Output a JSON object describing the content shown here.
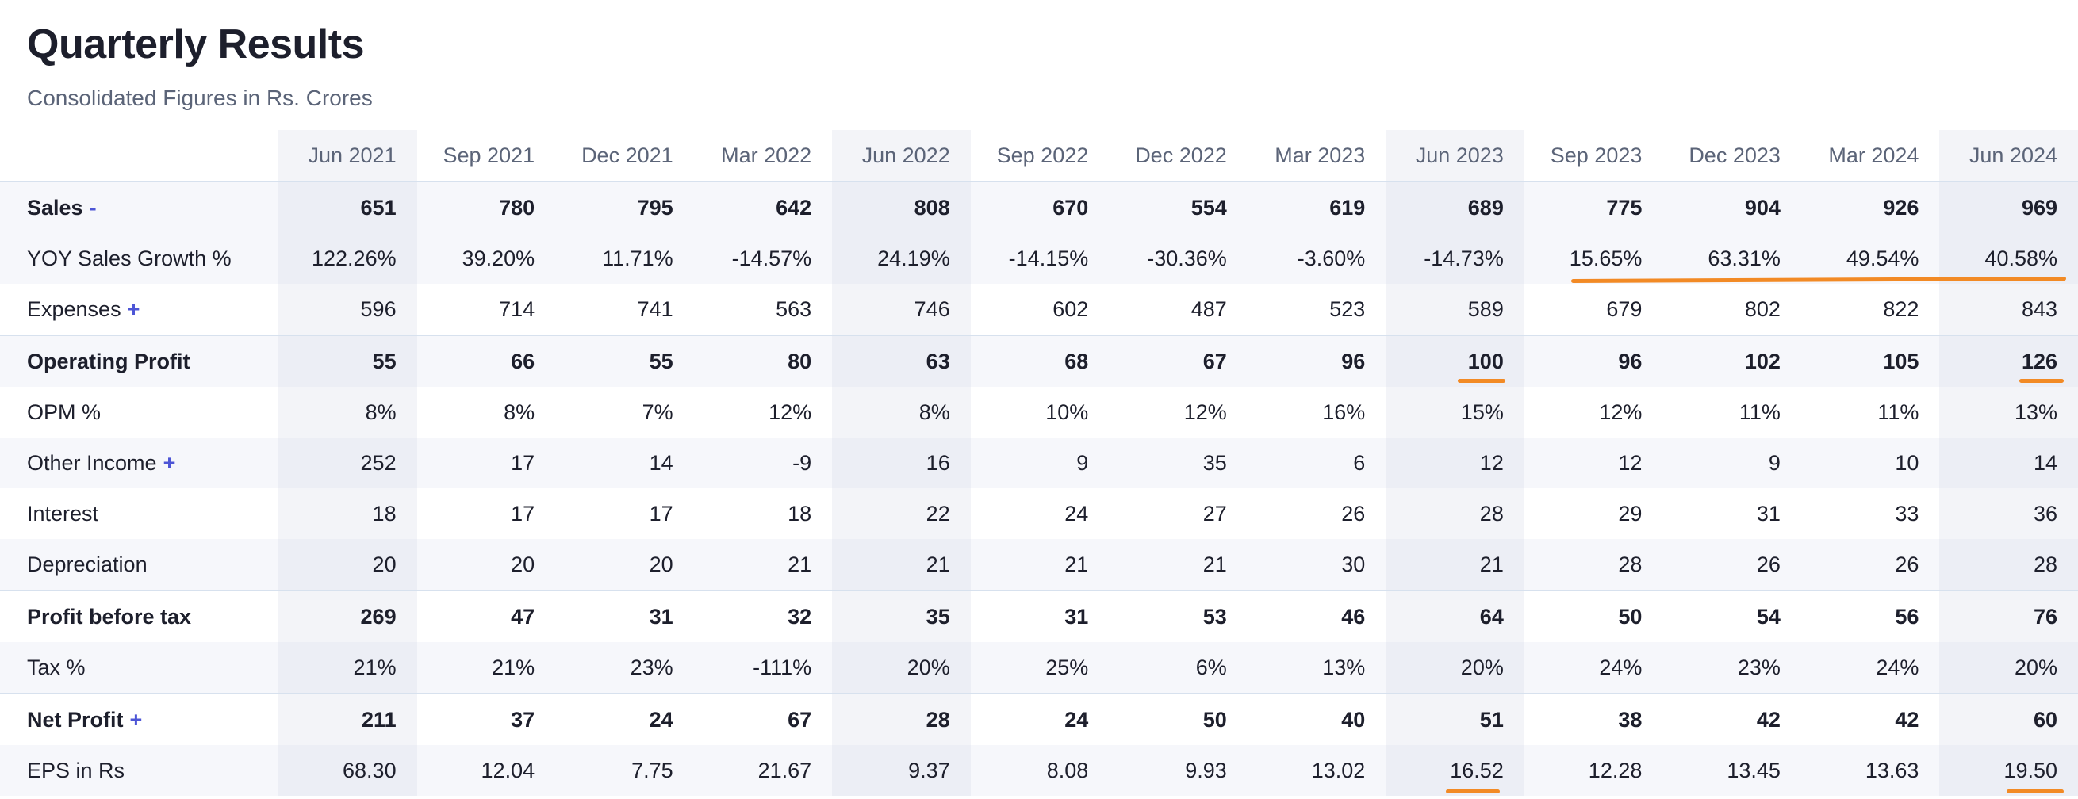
{
  "header": {
    "title": "Quarterly Results",
    "subtitle": "Consolidated Figures in Rs. Crores"
  },
  "table": {
    "columns": [
      "Jun 2021",
      "Sep 2021",
      "Dec 2021",
      "Mar 2022",
      "Jun 2022",
      "Sep 2022",
      "Dec 2022",
      "Mar 2023",
      "Jun 2023",
      "Sep 2023",
      "Dec 2023",
      "Mar 2024",
      "Jun 2024"
    ],
    "rows": [
      {
        "label": "Sales",
        "expand": "-",
        "values": [
          "651",
          "780",
          "795",
          "642",
          "808",
          "670",
          "554",
          "619",
          "689",
          "775",
          "904",
          "926",
          "969"
        ]
      },
      {
        "label": "YOY Sales Growth %",
        "expand": "",
        "values": [
          "122.26%",
          "39.20%",
          "11.71%",
          "-14.57%",
          "24.19%",
          "-14.15%",
          "-30.36%",
          "-3.60%",
          "-14.73%",
          "15.65%",
          "63.31%",
          "49.54%",
          "40.58%"
        ]
      },
      {
        "label": "Expenses",
        "expand": "+",
        "values": [
          "596",
          "714",
          "741",
          "563",
          "746",
          "602",
          "487",
          "523",
          "589",
          "679",
          "802",
          "822",
          "843"
        ]
      },
      {
        "label": "Operating Profit",
        "expand": "",
        "values": [
          "55",
          "66",
          "55",
          "80",
          "63",
          "68",
          "67",
          "96",
          "100",
          "96",
          "102",
          "105",
          "126"
        ]
      },
      {
        "label": "OPM %",
        "expand": "",
        "values": [
          "8%",
          "8%",
          "7%",
          "12%",
          "8%",
          "10%",
          "12%",
          "16%",
          "15%",
          "12%",
          "11%",
          "11%",
          "13%"
        ]
      },
      {
        "label": "Other Income",
        "expand": "+",
        "values": [
          "252",
          "17",
          "14",
          "-9",
          "16",
          "9",
          "35",
          "6",
          "12",
          "12",
          "9",
          "10",
          "14"
        ]
      },
      {
        "label": "Interest",
        "expand": "",
        "values": [
          "18",
          "17",
          "17",
          "18",
          "22",
          "24",
          "27",
          "26",
          "28",
          "29",
          "31",
          "33",
          "36"
        ]
      },
      {
        "label": "Depreciation",
        "expand": "",
        "values": [
          "20",
          "20",
          "20",
          "21",
          "21",
          "21",
          "21",
          "30",
          "21",
          "28",
          "26",
          "26",
          "28"
        ]
      },
      {
        "label": "Profit before tax",
        "expand": "",
        "values": [
          "269",
          "47",
          "31",
          "32",
          "35",
          "31",
          "53",
          "46",
          "64",
          "50",
          "54",
          "56",
          "76"
        ]
      },
      {
        "label": "Tax %",
        "expand": "",
        "values": [
          "21%",
          "21%",
          "23%",
          "-111%",
          "20%",
          "25%",
          "6%",
          "13%",
          "20%",
          "24%",
          "23%",
          "24%",
          "20%"
        ]
      },
      {
        "label": "Net Profit",
        "expand": "+",
        "values": [
          "211",
          "37",
          "24",
          "67",
          "28",
          "24",
          "50",
          "40",
          "51",
          "38",
          "42",
          "42",
          "60"
        ]
      },
      {
        "label": "EPS in Rs",
        "expand": "",
        "values": [
          "68.30",
          "12.04",
          "7.75",
          "21.67",
          "9.37",
          "8.08",
          "9.93",
          "13.02",
          "16.52",
          "12.28",
          "13.45",
          "13.63",
          "19.50"
        ]
      }
    ]
  },
  "annotations": {
    "color": "#f28a25"
  }
}
